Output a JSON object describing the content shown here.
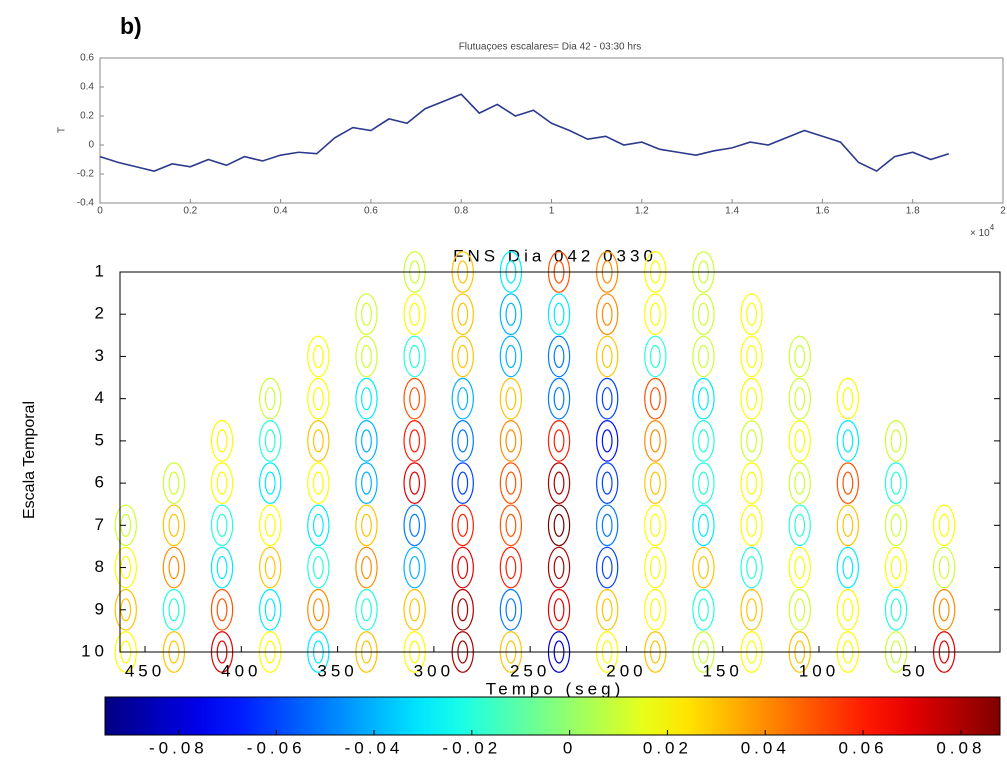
{
  "panel_label": "b)",
  "chart_data": [
    {
      "type": "line",
      "title": "Flutuaçoes escalares= Dia 42 - 03:30 hrs",
      "y_label": "T",
      "x_multiplier": {
        "base": "× 10",
        "exponent": "4"
      },
      "color": "#2b3a8c",
      "xlim": [
        0,
        2
      ],
      "ylim": [
        -0.4,
        0.6
      ],
      "xticks": [
        0,
        0.2,
        0.4,
        0.6,
        0.8,
        1,
        1.2,
        1.4,
        1.6,
        1.8,
        2
      ],
      "yticks": [
        -0.4,
        -0.2,
        0,
        0.2,
        0.4,
        0.6
      ],
      "x": [
        0,
        0.04,
        0.08,
        0.12,
        0.16,
        0.2,
        0.24,
        0.28,
        0.32,
        0.36,
        0.4,
        0.44,
        0.48,
        0.52,
        0.56,
        0.6,
        0.64,
        0.68,
        0.72,
        0.76,
        0.8,
        0.84,
        0.88,
        0.92,
        0.96,
        1.0,
        1.04,
        1.08,
        1.12,
        1.16,
        1.2,
        1.24,
        1.28,
        1.32,
        1.36,
        1.4,
        1.44,
        1.48,
        1.52,
        1.56,
        1.6,
        1.64,
        1.68,
        1.72,
        1.76,
        1.8,
        1.84,
        1.88
      ],
      "values": [
        -0.08,
        -0.12,
        -0.15,
        -0.18,
        -0.13,
        -0.15,
        -0.1,
        -0.14,
        -0.08,
        -0.11,
        -0.07,
        -0.05,
        -0.06,
        0.05,
        0.12,
        0.1,
        0.18,
        0.15,
        0.25,
        0.3,
        0.35,
        0.22,
        0.28,
        0.2,
        0.24,
        0.15,
        0.1,
        0.04,
        0.06,
        0.0,
        0.02,
        -0.03,
        -0.05,
        -0.07,
        -0.04,
        -0.02,
        0.02,
        0.0,
        0.05,
        0.1,
        0.06,
        0.02,
        -0.12,
        -0.18,
        -0.08,
        -0.05,
        -0.1,
        -0.06
      ]
    },
    {
      "type": "contour",
      "title": "FNS Dia 042 0330",
      "x_label": "Tempo (seg)",
      "y_label": "Escala Temporal",
      "xlim": [
        463,
        6
      ],
      "ylim": [
        1,
        10
      ],
      "xticks": [
        450,
        400,
        350,
        300,
        250,
        200,
        150,
        100,
        50
      ],
      "yticks": [
        1,
        2,
        3,
        4,
        5,
        6,
        7,
        8,
        9,
        10
      ],
      "clim": [
        -0.095,
        0.088
      ],
      "cticks": [
        -0.08,
        -0.06,
        -0.04,
        -0.02,
        0,
        0.02,
        0.04,
        0.06,
        0.08
      ],
      "x": [
        460,
        435,
        410,
        385,
        360,
        335,
        310,
        285,
        260,
        235,
        210,
        185,
        160,
        135,
        110,
        85,
        60,
        35
      ],
      "y": [
        1,
        2,
        3,
        4,
        5,
        6,
        7,
        8,
        9,
        10
      ],
      "z": [
        [
          null,
          null,
          null,
          null,
          null,
          null,
          0.01,
          0.03,
          -0.03,
          0.05,
          0.04,
          0.02,
          0.01,
          null,
          null,
          null,
          null,
          null
        ],
        [
          null,
          null,
          null,
          null,
          null,
          0.01,
          0.02,
          0.03,
          -0.04,
          -0.03,
          0.04,
          0.02,
          0.01,
          0.02,
          null,
          null,
          null,
          null
        ],
        [
          null,
          null,
          null,
          null,
          0.02,
          0.01,
          -0.02,
          0.03,
          -0.04,
          -0.05,
          0.03,
          -0.02,
          0.01,
          0.02,
          0.01,
          null,
          null,
          null
        ],
        [
          null,
          null,
          null,
          0.01,
          0.02,
          -0.03,
          0.05,
          -0.04,
          0.03,
          -0.05,
          -0.06,
          0.05,
          -0.03,
          0.02,
          0.01,
          0.02,
          null,
          null
        ],
        [
          null,
          null,
          0.02,
          -0.02,
          0.03,
          -0.04,
          0.06,
          -0.05,
          0.04,
          0.06,
          -0.07,
          0.04,
          -0.02,
          0.01,
          0.02,
          -0.03,
          0.01,
          null
        ],
        [
          null,
          0.01,
          0.02,
          -0.03,
          0.02,
          -0.04,
          0.07,
          -0.06,
          0.05,
          0.08,
          -0.06,
          0.03,
          -0.02,
          0.02,
          0.01,
          0.05,
          -0.02,
          null
        ],
        [
          0.01,
          0.03,
          -0.02,
          0.02,
          -0.03,
          0.03,
          -0.05,
          0.06,
          0.05,
          0.09,
          -0.05,
          0.02,
          -0.03,
          0.02,
          -0.02,
          0.03,
          0.01,
          0.02
        ],
        [
          0.02,
          0.04,
          -0.03,
          0.03,
          -0.02,
          0.04,
          -0.04,
          0.07,
          0.06,
          0.08,
          -0.06,
          0.02,
          0.03,
          -0.02,
          0.02,
          -0.03,
          0.02,
          0.01
        ],
        [
          0.03,
          -0.02,
          0.05,
          -0.03,
          0.04,
          -0.02,
          0.03,
          0.08,
          -0.05,
          0.07,
          0.03,
          0.02,
          -0.02,
          0.03,
          0.01,
          0.02,
          -0.02,
          0.04
        ],
        [
          0.02,
          0.03,
          0.07,
          0.02,
          -0.03,
          0.03,
          0.02,
          0.08,
          0.03,
          -0.08,
          0.02,
          0.03,
          0.01,
          0.02,
          0.03,
          0.02,
          0.01,
          0.07
        ]
      ]
    }
  ]
}
